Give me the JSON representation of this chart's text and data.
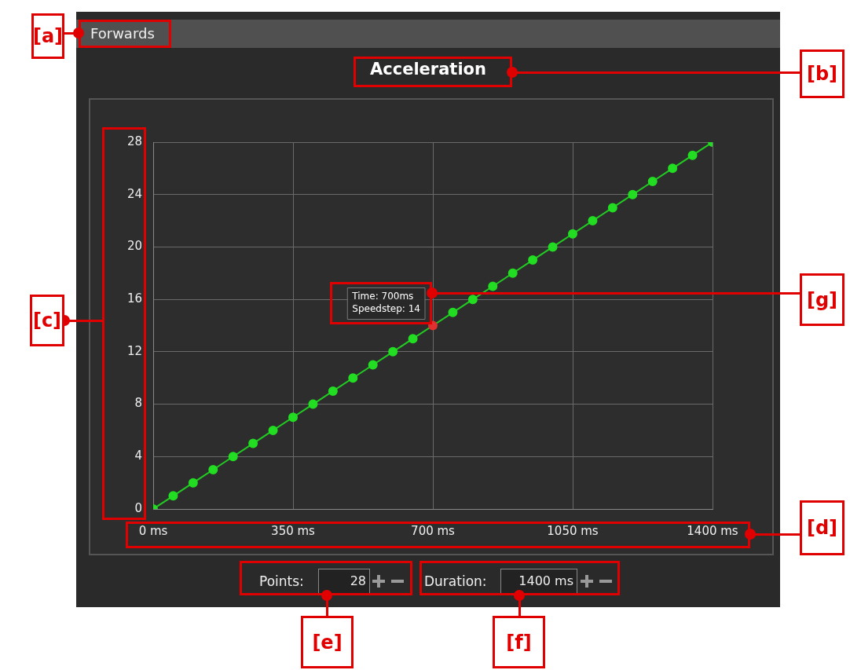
{
  "chart_data": {
    "type": "line",
    "title": "Acceleration",
    "x": [
      0,
      50,
      100,
      150,
      200,
      250,
      300,
      350,
      400,
      450,
      500,
      550,
      600,
      650,
      700,
      750,
      800,
      850,
      900,
      950,
      1000,
      1050,
      1100,
      1150,
      1200,
      1250,
      1300,
      1350,
      1400
    ],
    "series": [
      {
        "color": "#22cc22",
        "colors": [
          "#22dd22",
          "#22dd22",
          "#22dd22",
          "#22dd22",
          "#22dd22",
          "#22dd22",
          "#22dd22",
          "#22dd22",
          "#22dd22",
          "#22dd22",
          "#22dd22",
          "#22dd22",
          "#22dd22",
          "#22dd22",
          "#e03030",
          "#22dd22",
          "#22dd22",
          "#22dd22",
          "#22dd22",
          "#22dd22",
          "#22dd22",
          "#22dd22",
          "#22dd22",
          "#22dd22",
          "#22dd22",
          "#22dd22",
          "#22dd22",
          "#22dd22",
          "#22dd22"
        ],
        "values": [
          0,
          1,
          2,
          3,
          4,
          5,
          6,
          7,
          8,
          9,
          10,
          11,
          12,
          13,
          14,
          15,
          16,
          17,
          18,
          19,
          20,
          21,
          22,
          23,
          24,
          25,
          26,
          27,
          28
        ]
      }
    ],
    "xlim": [
      0,
      1400
    ],
    "xticks": [
      {
        "value": 0,
        "label": "0 ms"
      },
      {
        "value": 350,
        "label": "350 ms"
      },
      {
        "value": 700,
        "label": "700 ms"
      },
      {
        "value": 1050,
        "label": "1050 ms"
      },
      {
        "value": 1400,
        "label": "1400 ms"
      }
    ],
    "ylim": [
      0,
      28
    ],
    "yticks": [
      0,
      4,
      8,
      12,
      16,
      20,
      24,
      28
    ],
    "grid": true,
    "marker": "circle",
    "line_style": "solid",
    "annotations": [
      "Forwards",
      {
        "text": "Time: 700ms\nSpeedstep: 14",
        "x": 700,
        "y": 14
      },
      "Points:",
      "28",
      "Duration:",
      "1400 ms",
      "[a]",
      "[b]",
      "[c]",
      "[d]",
      "[e]",
      "[f]",
      "[g]"
    ]
  }
}
